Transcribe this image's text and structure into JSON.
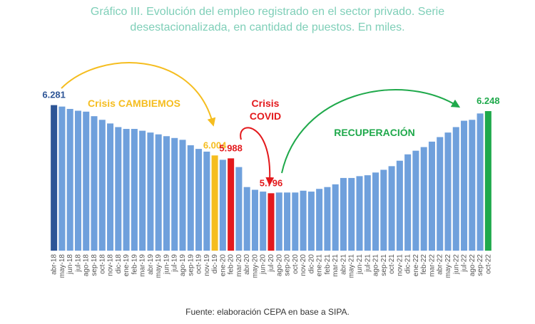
{
  "chart_data": {
    "type": "bar",
    "title": "Gráfico III. Evolución del empleo registrado en el sector privado. Serie desestacionalizada, en cantidad de puestos. En miles.",
    "source": "Fuente: elaboración CEPA en base a SIPA.",
    "annotations": [
      "Crisis CAMBIEMOS",
      "Crisis",
      "COVID",
      "RECUPERACIÓN"
    ],
    "categories": [
      "abr-18",
      "may-18",
      "jun-18",
      "jul-18",
      "ago-18",
      "sep-18",
      "oct-18",
      "nov-18",
      "dic-18",
      "ene-19",
      "feb-19",
      "mar-19",
      "abr-19",
      "may-19",
      "jun-19",
      "jul-19",
      "ago-19",
      "sep-19",
      "oct-19",
      "nov-19",
      "dic-19",
      "ene-20",
      "feb-20",
      "mar-20",
      "abr-20",
      "may-20",
      "jun-20",
      "jul-20",
      "ago-20",
      "sep-20",
      "oct-20",
      "nov-20",
      "dic-20",
      "ene-21",
      "feb-21",
      "mar-21",
      "abr-21",
      "may-21",
      "jun-21",
      "jul-21",
      "ago-21",
      "sep-21",
      "oct-21",
      "nov-21",
      "dic-21",
      "ene-22",
      "feb-22",
      "mar-22",
      "abr-22",
      "may-22",
      "jun-22",
      "jul-22",
      "ago-22",
      "sep-22",
      "oct-22"
    ],
    "values": [
      6281,
      6273,
      6260,
      6250,
      6245,
      6220,
      6200,
      6180,
      6160,
      6150,
      6150,
      6140,
      6130,
      6120,
      6110,
      6100,
      6090,
      6060,
      6040,
      6025,
      6004,
      5980,
      5988,
      5940,
      5830,
      5815,
      5805,
      5796,
      5800,
      5800,
      5800,
      5810,
      5805,
      5820,
      5830,
      5845,
      5880,
      5880,
      5890,
      5895,
      5910,
      5925,
      5945,
      5975,
      6010,
      6030,
      6050,
      6080,
      6105,
      6130,
      6160,
      6195,
      6200,
      6235,
      6248
    ],
    "value_labels": [
      "6.281",
      null,
      null,
      null,
      null,
      null,
      null,
      null,
      null,
      null,
      null,
      null,
      null,
      null,
      null,
      null,
      null,
      null,
      null,
      null,
      "6.004",
      null,
      "5.988",
      null,
      null,
      null,
      null,
      "5.796",
      null,
      null,
      null,
      null,
      null,
      null,
      null,
      null,
      null,
      null,
      null,
      null,
      null,
      null,
      null,
      null,
      null,
      null,
      null,
      null,
      null,
      null,
      null,
      null,
      null,
      null,
      "6.248"
    ],
    "colors": [
      "#2d5596",
      "#6fa0dc",
      "#6fa0dc",
      "#6fa0dc",
      "#6fa0dc",
      "#6fa0dc",
      "#6fa0dc",
      "#6fa0dc",
      "#6fa0dc",
      "#6fa0dc",
      "#6fa0dc",
      "#6fa0dc",
      "#6fa0dc",
      "#6fa0dc",
      "#6fa0dc",
      "#6fa0dc",
      "#6fa0dc",
      "#6fa0dc",
      "#6fa0dc",
      "#6fa0dc",
      "#f5bd1f",
      "#6fa0dc",
      "#e3191c",
      "#6fa0dc",
      "#6fa0dc",
      "#6fa0dc",
      "#6fa0dc",
      "#e3191c",
      "#6fa0dc",
      "#6fa0dc",
      "#6fa0dc",
      "#6fa0dc",
      "#6fa0dc",
      "#6fa0dc",
      "#6fa0dc",
      "#6fa0dc",
      "#6fa0dc",
      "#6fa0dc",
      "#6fa0dc",
      "#6fa0dc",
      "#6fa0dc",
      "#6fa0dc",
      "#6fa0dc",
      "#6fa0dc",
      "#6fa0dc",
      "#6fa0dc",
      "#6fa0dc",
      "#6fa0dc",
      "#6fa0dc",
      "#6fa0dc",
      "#6fa0dc",
      "#6fa0dc",
      "#6fa0dc",
      "#6fa0dc",
      "#1fa94b"
    ],
    "ylim": [
      5480,
      6350
    ]
  }
}
